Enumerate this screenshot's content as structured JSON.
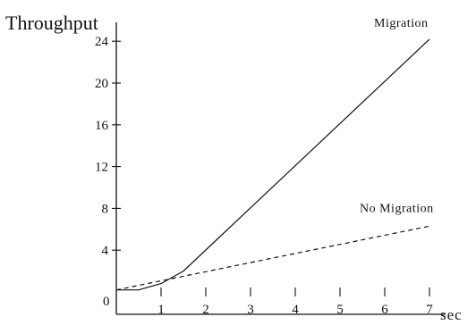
{
  "chart_data": {
    "type": "line",
    "xlabel": "sec",
    "ylabel": "Throughput",
    "xlim": [
      0,
      7.6
    ],
    "ylim": [
      0,
      26
    ],
    "x_ticks": [
      0,
      1,
      2,
      3,
      4,
      5,
      6,
      7
    ],
    "y_ticks": [
      4,
      8,
      12,
      16,
      20,
      24
    ],
    "origin_label": "0",
    "grid": false,
    "series": [
      {
        "name": "Migration",
        "style": "solid",
        "x": [
          0,
          0.5,
          1.0,
          1.5,
          7.0
        ],
        "y": [
          0.2,
          0.2,
          0.8,
          2.0,
          24.2
        ]
      },
      {
        "name": "No Migration",
        "style": "dashed",
        "x": [
          0,
          7.0
        ],
        "y": [
          0.2,
          6.3
        ]
      }
    ]
  }
}
